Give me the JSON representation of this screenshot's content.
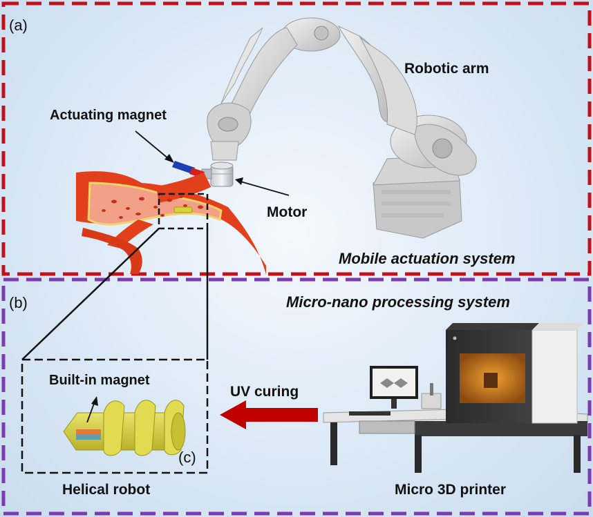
{
  "panels": {
    "a": {
      "label": "(a)",
      "title": "Mobile actuation system",
      "border_color": "#c0121d"
    },
    "b": {
      "label": "(b)",
      "title": "Micro-nano processing system",
      "border_color": "#7a3cb0"
    },
    "c": {
      "label": "(c)"
    }
  },
  "labels": {
    "robotic_arm": "Robotic arm",
    "actuating_magnet": "Actuating magnet",
    "motor": "Motor",
    "built_in_magnet": "Built-in magnet",
    "uv_curing": "UV curing",
    "helical_robot": "Helical robot",
    "micro_3d_printer": "Micro 3D printer"
  },
  "colors": {
    "vessel": "#e2401c",
    "uv_arrow": "#c00000",
    "robot": "#d9d23a",
    "magnet_blue": "#1d3fb4",
    "magnet_red": "#d41f1f"
  },
  "icons": {
    "robotic_arm": "industrial-robot-arm",
    "motor": "motor-cylinder",
    "printer": "micro-3d-printer"
  }
}
